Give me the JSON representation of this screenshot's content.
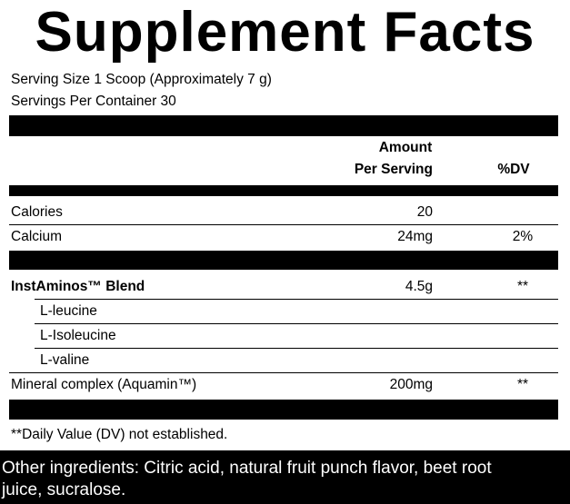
{
  "title": "Supplement Facts",
  "serving_size": "Serving Size 1 Scoop (Approximately 7 g)",
  "servings_per_container": "Servings Per Container 30",
  "table": {
    "header": {
      "amount": "Amount",
      "per_serving": "Per Serving",
      "dv": "%DV"
    },
    "rows": [
      {
        "name": "Calories",
        "amount": "20"
      },
      {
        "name": "Calcium",
        "amount": "24mg",
        "dv": "2%"
      },
      {
        "name": "InstAminos™ Blend",
        "amount": "4.5g",
        "dv": "**"
      },
      {
        "name": "L-leucine"
      },
      {
        "name": "L-Isoleucine"
      },
      {
        "name": "L-valine"
      },
      {
        "name": "Mineral complex (Aquamin™)",
        "amount": "200mg",
        "dv": "**"
      }
    ]
  },
  "footnote": "**Daily Value (DV) not established.",
  "other_ingredients": [
    "Other ingredients: Citric acid, natural fruit punch flavor, beet root",
    "juice, sucralose."
  ]
}
